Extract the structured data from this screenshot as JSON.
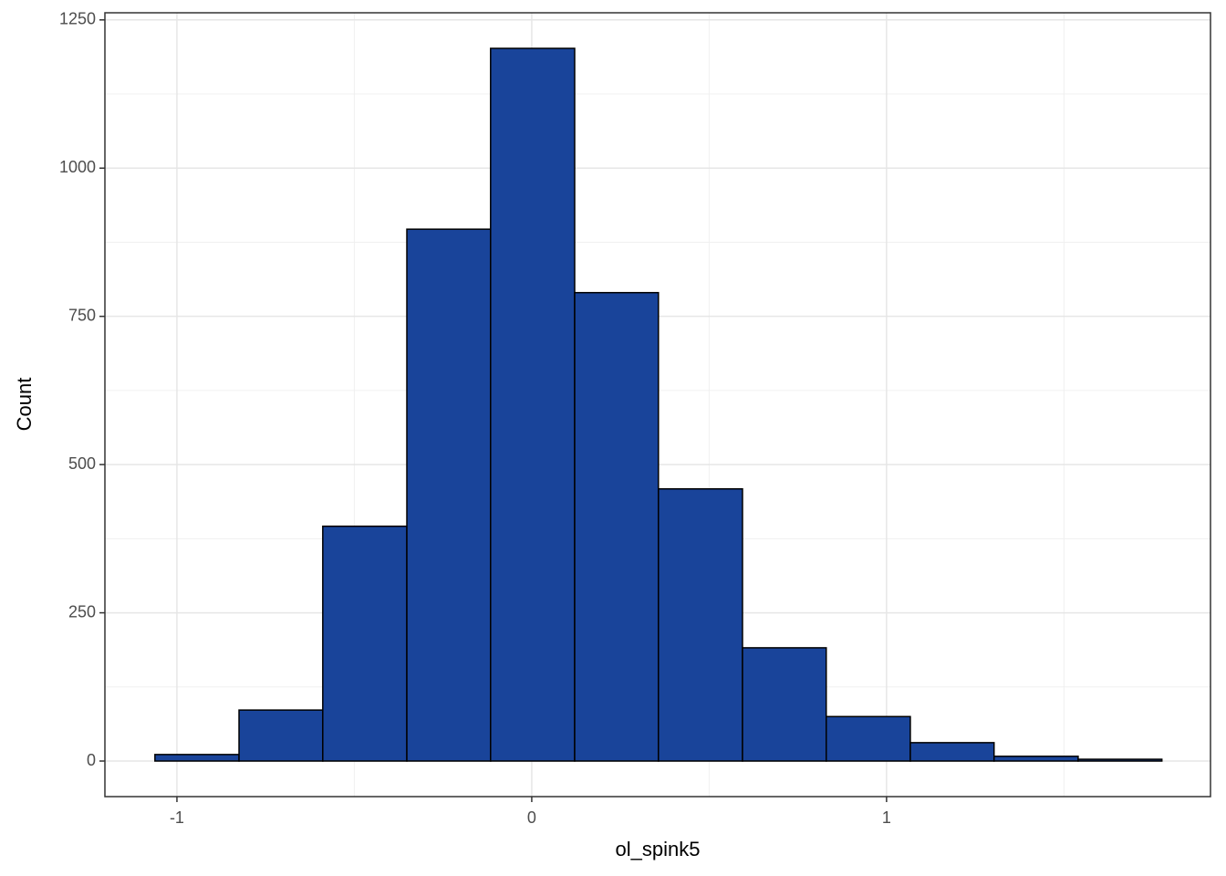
{
  "chart_data": {
    "type": "histogram",
    "x_label": "ol_spink5",
    "y_label": "Count",
    "bins": [
      -1.062,
      -0.825,
      -0.589,
      -0.352,
      -0.116,
      0.121,
      0.357,
      0.594,
      0.83,
      1.067,
      1.303,
      1.54,
      1.776
    ],
    "values": [
      11,
      86,
      396,
      897,
      1202,
      790,
      459,
      191,
      75,
      31,
      8,
      3
    ],
    "color": "#19449a",
    "edge_color": "#000000",
    "xlim": [
      -1.203,
      1.913
    ],
    "ylim": [
      -60,
      1262
    ],
    "xticks": [
      -1,
      0,
      1
    ],
    "yticks": [
      0,
      250,
      500,
      750,
      1000,
      1250
    ],
    "x_minor_gridlines": [
      -0.5,
      0.5,
      1.5
    ],
    "y_minor_gridlines": [
      125,
      375,
      625,
      875,
      1125
    ],
    "grid": true
  }
}
